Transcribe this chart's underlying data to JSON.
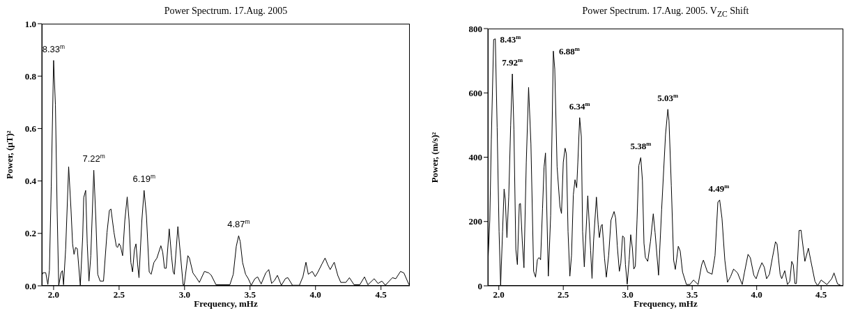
{
  "chart_data": [
    {
      "type": "line",
      "title": "Power Spectrum. 17.Aug. 2005",
      "xlabel": "Frequency, mHz",
      "ylabel": "Power, (μT)²",
      "xlim": [
        1.91,
        4.72
      ],
      "ylim": [
        0,
        1.0
      ],
      "xticks": [
        {
          "value": 2,
          "label": "2.0"
        },
        {
          "value": 2.5,
          "label": "2.5"
        },
        {
          "value": 3,
          "label": "3.0"
        },
        {
          "value": 3.5,
          "label": "3.5"
        },
        {
          "value": 4,
          "label": "4.0"
        },
        {
          "value": 4.5,
          "label": "4.5"
        }
      ],
      "yticks": [
        {
          "value": 0,
          "label": "0.0"
        },
        {
          "value": 0.2,
          "label": "0.2"
        },
        {
          "value": 0.4,
          "label": "0.4"
        },
        {
          "value": 0.6,
          "label": "0.6"
        },
        {
          "value": 0.8,
          "label": "0.8"
        },
        {
          "value": 1,
          "label": "1.0"
        }
      ],
      "series": [
        {
          "color": "#000000",
          "x": [
            1.91,
            1.92,
            1.94,
            1.956,
            1.968,
            1.982,
            2.0,
            2.014,
            2.027,
            2.039,
            2.057,
            2.067,
            2.076,
            2.092,
            2.115,
            2.133,
            2.145,
            2.156,
            2.168,
            2.181,
            2.204,
            2.222,
            2.23,
            2.245,
            2.257,
            2.27,
            2.284,
            2.307,
            2.323,
            2.337,
            2.355,
            2.381,
            2.408,
            2.426,
            2.438,
            2.461,
            2.479,
            2.488,
            2.5,
            2.511,
            2.527,
            2.544,
            2.562,
            2.576,
            2.59,
            2.603,
            2.617,
            2.629,
            2.642,
            2.652,
            2.674,
            2.691,
            2.709,
            2.73,
            2.745,
            2.766,
            2.789,
            2.819,
            2.833,
            2.847,
            2.86,
            2.883,
            2.9,
            2.913,
            2.922,
            2.949,
            2.966,
            2.989,
            2.998,
            3.025,
            3.037,
            3.064,
            3.09,
            3.113,
            3.152,
            3.186,
            3.204,
            3.24,
            3.346,
            3.372,
            3.395,
            3.413,
            3.425,
            3.443,
            3.466,
            3.487,
            3.509,
            3.537,
            3.558,
            3.585,
            3.62,
            3.643,
            3.665,
            3.686,
            3.709,
            3.739,
            3.771,
            3.789,
            3.824,
            3.877,
            3.904,
            3.927,
            3.945,
            3.975,
            3.998,
            4.019,
            4.05,
            4.073,
            4.094,
            4.112,
            4.143,
            4.17,
            4.193,
            4.232,
            4.259,
            4.294,
            4.338,
            4.374,
            4.4,
            4.448,
            4.477,
            4.507,
            4.533,
            4.587,
            4.613,
            4.649,
            4.675,
            4.714
          ],
          "values": [
            0.04,
            0.05,
            0.05,
            0.005,
            0.06,
            0.38,
            0.86,
            0.69,
            0.29,
            0,
            0.05,
            0.058,
            0.004,
            0.14,
            0.454,
            0.29,
            0.16,
            0.12,
            0.146,
            0.142,
            0,
            0.186,
            0.337,
            0.364,
            0.16,
            0.018,
            0.115,
            0.441,
            0.25,
            0.044,
            0.018,
            0.018,
            0.204,
            0.288,
            0.293,
            0.204,
            0.151,
            0.146,
            0.161,
            0.151,
            0.115,
            0.25,
            0.339,
            0.25,
            0.089,
            0.053,
            0.138,
            0.16,
            0.08,
            0.031,
            0.25,
            0.364,
            0.266,
            0.053,
            0.044,
            0.089,
            0.106,
            0.153,
            0.129,
            0.067,
            0.067,
            0.217,
            0.115,
            0.053,
            0.044,
            0.226,
            0.133,
            0.004,
            0.004,
            0.115,
            0.106,
            0.049,
            0.031,
            0.013,
            0.055,
            0.049,
            0.04,
            0.004,
            0.004,
            0.044,
            0.151,
            0.191,
            0.169,
            0.089,
            0.044,
            0.027,
            0.002,
            0.027,
            0.034,
            0.007,
            0.049,
            0.062,
            0.009,
            0.02,
            0.04,
            0.002,
            0.028,
            0.031,
            0.002,
            0.002,
            0.035,
            0.09,
            0.044,
            0.055,
            0.035,
            0.053,
            0.084,
            0.106,
            0.08,
            0.062,
            0.09,
            0.04,
            0.013,
            0.013,
            0.031,
            0.004,
            0.004,
            0.034,
            0.004,
            0.027,
            0.009,
            0.018,
            0.002,
            0.031,
            0.027,
            0.055,
            0.049,
            0.004
          ]
        }
      ],
      "annotations": [
        {
          "text": "8.33$^{m}$",
          "x": 2.0,
          "y": 0.86
        },
        {
          "text": "7.22$^{m}$",
          "x": 2.307,
          "y": 0.441
        },
        {
          "text": "6.19$^{m}$",
          "x": 2.691,
          "y": 0.364
        },
        {
          "text": "4.87$^{m}$",
          "x": 3.413,
          "y": 0.191
        }
      ]
    },
    {
      "type": "line",
      "title": "Power Spectrum. 17.Aug. 2005. V$_{ZC}$  Shift",
      "xlabel": "Frequency, mHz",
      "ylabel": "Power, (m/s)²",
      "xlim": [
        1.915,
        4.672
      ],
      "ylim": [
        0,
        800
      ],
      "xticks": [
        {
          "value": 2,
          "label": "2.0"
        },
        {
          "value": 2.5,
          "label": "2.5"
        },
        {
          "value": 3,
          "label": "3.0"
        },
        {
          "value": 3.5,
          "label": "3.5"
        },
        {
          "value": 4,
          "label": "4.0"
        },
        {
          "value": 4.5,
          "label": "4.5"
        }
      ],
      "yticks": [
        0,
        200,
        400,
        600,
        800
      ],
      "series": [
        {
          "color": "#000000",
          "x": [
            1.915,
            1.93,
            1.942,
            1.96,
            1.973,
            1.987,
            2.002,
            2.014,
            2.029,
            2.041,
            2.05,
            2.063,
            2.077,
            2.092,
            2.105,
            2.117,
            2.132,
            2.144,
            2.159,
            2.168,
            2.182,
            2.195,
            2.213,
            2.231,
            2.249,
            2.27,
            2.285,
            2.299,
            2.312,
            2.324,
            2.339,
            2.351,
            2.362,
            2.384,
            2.402,
            2.423,
            2.434,
            2.452,
            2.474,
            2.486,
            2.5,
            2.514,
            2.524,
            2.537,
            2.551,
            2.564,
            2.578,
            2.591,
            2.604,
            2.613,
            2.627,
            2.64,
            2.65,
            2.663,
            2.69,
            2.712,
            2.723,
            2.735,
            2.757,
            2.771,
            2.78,
            2.793,
            2.802,
            2.82,
            2.834,
            2.852,
            2.87,
            2.894,
            2.906,
            2.919,
            2.935,
            2.946,
            2.96,
            2.973,
            2.982,
            2.996,
            3.011,
            3.023,
            3.036,
            3.047,
            3.059,
            3.072,
            3.086,
            3.101,
            3.114,
            3.126,
            3.137,
            3.155,
            3.176,
            3.198,
            3.212,
            3.239,
            3.263,
            3.293,
            3.311,
            3.32,
            3.338,
            3.356,
            3.369,
            3.392,
            3.407,
            3.425,
            3.455,
            3.482,
            3.51,
            3.546,
            3.573,
            3.587,
            3.618,
            3.654,
            3.677,
            3.699,
            3.713,
            3.731,
            3.753,
            3.774,
            3.798,
            3.821,
            3.852,
            3.888,
            3.906,
            3.933,
            3.951,
            3.978,
            3.996,
            4.019,
            4.041,
            4.059,
            4.077,
            4.099,
            4.122,
            4.146,
            4.158,
            4.182,
            4.194,
            4.218,
            4.239,
            4.257,
            4.272,
            4.284,
            4.297,
            4.308,
            4.329,
            4.344,
            4.374,
            4.401,
            4.419,
            4.452,
            4.473,
            4.5,
            4.545,
            4.582,
            4.6,
            4.627,
            4.654,
            4.672
          ],
          "values": [
            66,
            204,
            457,
            766,
            768,
            493,
            168,
            0,
            168,
            301,
            269,
            150,
            276,
            500,
            659,
            486,
            113,
            66,
            254,
            256,
            139,
            56,
            384,
            617,
            442,
            45,
            27,
            81,
            88,
            81,
            240,
            370,
            413,
            30,
            218,
            730,
            674,
            370,
            247,
            225,
            384,
            428,
            410,
            168,
            30,
            95,
            283,
            330,
            305,
            384,
            523,
            464,
            168,
            59,
            280,
            110,
            23,
            139,
            276,
            189,
            150,
            186,
            191,
            85,
            27,
            95,
            204,
            231,
            211,
            124,
            45,
            70,
            155,
            150,
            66,
            5,
            81,
            159,
            117,
            52,
            61,
            204,
            374,
            399,
            327,
            132,
            88,
            76,
            137,
            224,
            166,
            33,
            238,
            470,
            549,
            513,
            311,
            80,
            51,
            123,
            108,
            43,
            4,
            4,
            18,
            4,
            65,
            80,
            43,
            36,
            94,
            260,
            267,
            210,
            80,
            11,
            29,
            52,
            40,
            4,
            43,
            98,
            87,
            33,
            22,
            51,
            72,
            58,
            22,
            36,
            87,
            137,
            130,
            36,
            22,
            47,
            4,
            14,
            76,
            65,
            7,
            7,
            172,
            173,
            76,
            117,
            80,
            14,
            0,
            18,
            4,
            22,
            40,
            6,
            1,
            1
          ]
        }
      ],
      "annotations": [
        {
          "text": "8.43$^{m}$",
          "x": 1.967,
          "y": 768
        },
        {
          "text": "7.92$^{m}$",
          "x": 2.105,
          "y": 659
        },
        {
          "text": "6.88$^{m}$",
          "x": 2.423,
          "y": 730
        },
        {
          "text": "6.34$^{m}$",
          "x": 2.627,
          "y": 523
        },
        {
          "text": "5.38$^{m}$",
          "x": 3.101,
          "y": 399
        },
        {
          "text": "5.03$^{m}$",
          "x": 3.311,
          "y": 549
        },
        {
          "text": "4.49$^{m}$",
          "x": 3.706,
          "y": 267
        }
      ]
    }
  ]
}
